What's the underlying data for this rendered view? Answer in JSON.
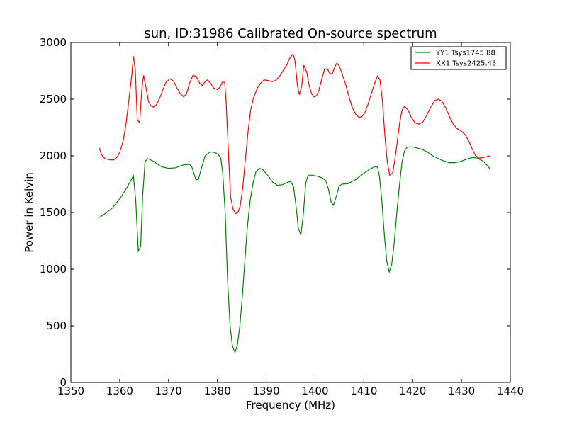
{
  "chart_data": {
    "type": "line",
    "title": "sun, ID:31986 Calibrated On-source spectrum",
    "xlabel": "Frequency (MHz)",
    "ylabel": "Power in Kelvin",
    "xlim": [
      1350,
      1440
    ],
    "ylim": [
      0,
      3000
    ],
    "xticks": [
      "1350",
      "1360",
      "1370",
      "1380",
      "1390",
      "1400",
      "1410",
      "1420",
      "1430",
      "1440"
    ],
    "yticks": [
      "0",
      "500",
      "1000",
      "1500",
      "2000",
      "2500",
      "3000"
    ],
    "grid": false,
    "legend_position": "top-right",
    "series": [
      {
        "name": "YY1 Tsys1745.88",
        "color": "#008000",
        "points": [
          [
            1355.8,
            1455
          ],
          [
            1357,
            1490
          ],
          [
            1358.5,
            1540
          ],
          [
            1360,
            1620
          ],
          [
            1361.5,
            1720
          ],
          [
            1362.8,
            1825
          ],
          [
            1363.3,
            1600
          ],
          [
            1363.8,
            1160
          ],
          [
            1364.3,
            1200
          ],
          [
            1364.7,
            1650
          ],
          [
            1365.2,
            1950
          ],
          [
            1365.8,
            1975
          ],
          [
            1367,
            1950
          ],
          [
            1368.5,
            1905
          ],
          [
            1370,
            1890
          ],
          [
            1371.5,
            1895
          ],
          [
            1373,
            1920
          ],
          [
            1374.3,
            1925
          ],
          [
            1374.8,
            1900
          ],
          [
            1375.6,
            1790
          ],
          [
            1376.1,
            1790
          ],
          [
            1376.8,
            1900
          ],
          [
            1377.5,
            2000
          ],
          [
            1378.5,
            2035
          ],
          [
            1379.5,
            2030
          ],
          [
            1380.2,
            2010
          ],
          [
            1380.7,
            1980
          ],
          [
            1381.1,
            1850
          ],
          [
            1381.6,
            1500
          ],
          [
            1382.1,
            900
          ],
          [
            1382.6,
            500
          ],
          [
            1383.1,
            320
          ],
          [
            1383.6,
            265
          ],
          [
            1384.1,
            330
          ],
          [
            1384.6,
            500
          ],
          [
            1385.1,
            750
          ],
          [
            1385.6,
            1050
          ],
          [
            1386.1,
            1350
          ],
          [
            1386.7,
            1600
          ],
          [
            1387.3,
            1760
          ],
          [
            1387.9,
            1860
          ],
          [
            1388.6,
            1890
          ],
          [
            1389.3,
            1880
          ],
          [
            1390.3,
            1830
          ],
          [
            1391.3,
            1770
          ],
          [
            1392.3,
            1740
          ],
          [
            1393.3,
            1745
          ],
          [
            1394.3,
            1765
          ],
          [
            1395,
            1775
          ],
          [
            1395.6,
            1730
          ],
          [
            1396.1,
            1560
          ],
          [
            1396.6,
            1360
          ],
          [
            1397.1,
            1300
          ],
          [
            1397.6,
            1480
          ],
          [
            1398.1,
            1760
          ],
          [
            1398.6,
            1830
          ],
          [
            1399.3,
            1830
          ],
          [
            1400.5,
            1820
          ],
          [
            1401.5,
            1805
          ],
          [
            1402.2,
            1780
          ],
          [
            1402.8,
            1700
          ],
          [
            1403.3,
            1590
          ],
          [
            1403.8,
            1565
          ],
          [
            1404.4,
            1650
          ],
          [
            1404.9,
            1730
          ],
          [
            1405.5,
            1750
          ],
          [
            1406.8,
            1755
          ],
          [
            1408.3,
            1790
          ],
          [
            1409.8,
            1840
          ],
          [
            1411.3,
            1885
          ],
          [
            1412.3,
            1905
          ],
          [
            1412.8,
            1900
          ],
          [
            1413.2,
            1820
          ],
          [
            1413.7,
            1600
          ],
          [
            1414.2,
            1300
          ],
          [
            1414.7,
            1070
          ],
          [
            1415.2,
            975
          ],
          [
            1415.7,
            1040
          ],
          [
            1416.2,
            1220
          ],
          [
            1416.8,
            1520
          ],
          [
            1417.3,
            1740
          ],
          [
            1417.8,
            1940
          ],
          [
            1418.3,
            2040
          ],
          [
            1418.8,
            2075
          ],
          [
            1419.5,
            2080
          ],
          [
            1420.5,
            2075
          ],
          [
            1421.7,
            2060
          ],
          [
            1422.8,
            2040
          ],
          [
            1424.1,
            2000
          ],
          [
            1425.3,
            1975
          ],
          [
            1426.4,
            1955
          ],
          [
            1427.5,
            1940
          ],
          [
            1428.6,
            1940
          ],
          [
            1429.8,
            1950
          ],
          [
            1431,
            1970
          ],
          [
            1432.2,
            1985
          ],
          [
            1433.3,
            1980
          ],
          [
            1434.5,
            1950
          ],
          [
            1435.4,
            1910
          ],
          [
            1435.8,
            1885
          ]
        ]
      },
      {
        "name": "XX1 Tsys2425.45",
        "color": "#ff0000",
        "points": [
          [
            1355.8,
            2070
          ],
          [
            1356.3,
            2010
          ],
          [
            1357,
            1975
          ],
          [
            1358,
            1965
          ],
          [
            1358.8,
            1965
          ],
          [
            1359.5,
            1990
          ],
          [
            1360,
            2030
          ],
          [
            1360.7,
            2130
          ],
          [
            1361.3,
            2280
          ],
          [
            1361.9,
            2500
          ],
          [
            1362.5,
            2720
          ],
          [
            1362.8,
            2880
          ],
          [
            1363.2,
            2760
          ],
          [
            1363.6,
            2320
          ],
          [
            1364.1,
            2290
          ],
          [
            1364.5,
            2570
          ],
          [
            1364.9,
            2710
          ],
          [
            1365.4,
            2600
          ],
          [
            1365.9,
            2480
          ],
          [
            1366.4,
            2440
          ],
          [
            1366.9,
            2430
          ],
          [
            1367.5,
            2450
          ],
          [
            1368.2,
            2510
          ],
          [
            1368.9,
            2590
          ],
          [
            1369.5,
            2650
          ],
          [
            1370.3,
            2680
          ],
          [
            1371,
            2660
          ],
          [
            1371.7,
            2600
          ],
          [
            1372.4,
            2550
          ],
          [
            1373.1,
            2520
          ],
          [
            1373.7,
            2550
          ],
          [
            1374.3,
            2640
          ],
          [
            1375,
            2710
          ],
          [
            1375.7,
            2700
          ],
          [
            1376.4,
            2640
          ],
          [
            1376.9,
            2620
          ],
          [
            1377.6,
            2660
          ],
          [
            1378,
            2670
          ],
          [
            1378.6,
            2640
          ],
          [
            1379.2,
            2600
          ],
          [
            1380,
            2585
          ],
          [
            1380.6,
            2610
          ],
          [
            1381,
            2650
          ],
          [
            1381.5,
            2650
          ],
          [
            1381.8,
            2470
          ],
          [
            1382.3,
            2000
          ],
          [
            1382.7,
            1640
          ],
          [
            1383.2,
            1530
          ],
          [
            1383.7,
            1490
          ],
          [
            1384.2,
            1500
          ],
          [
            1384.7,
            1560
          ],
          [
            1385.2,
            1720
          ],
          [
            1385.7,
            1950
          ],
          [
            1386.3,
            2220
          ],
          [
            1386.8,
            2400
          ],
          [
            1387.4,
            2510
          ],
          [
            1388.2,
            2600
          ],
          [
            1389,
            2650
          ],
          [
            1389.6,
            2670
          ],
          [
            1390.4,
            2665
          ],
          [
            1391.2,
            2655
          ],
          [
            1391.9,
            2665
          ],
          [
            1392.7,
            2700
          ],
          [
            1393.3,
            2740
          ],
          [
            1394.2,
            2800
          ],
          [
            1394.8,
            2860
          ],
          [
            1395.5,
            2900
          ],
          [
            1395.9,
            2840
          ],
          [
            1396.4,
            2620
          ],
          [
            1396.8,
            2540
          ],
          [
            1397.3,
            2620
          ],
          [
            1397.7,
            2800
          ],
          [
            1398.3,
            2740
          ],
          [
            1398.8,
            2620
          ],
          [
            1399.3,
            2550
          ],
          [
            1399.8,
            2520
          ],
          [
            1400.3,
            2530
          ],
          [
            1400.8,
            2580
          ],
          [
            1401.4,
            2680
          ],
          [
            1402,
            2770
          ],
          [
            1402.6,
            2760
          ],
          [
            1403,
            2730
          ],
          [
            1403.5,
            2720
          ],
          [
            1404,
            2780
          ],
          [
            1404.5,
            2820
          ],
          [
            1405,
            2790
          ],
          [
            1405.5,
            2730
          ],
          [
            1406.2,
            2640
          ],
          [
            1406.9,
            2530
          ],
          [
            1407.6,
            2430
          ],
          [
            1408.3,
            2370
          ],
          [
            1409,
            2340
          ],
          [
            1409.6,
            2345
          ],
          [
            1410.2,
            2380
          ],
          [
            1410.9,
            2460
          ],
          [
            1411.6,
            2560
          ],
          [
            1412.3,
            2650
          ],
          [
            1412.8,
            2705
          ],
          [
            1413.3,
            2670
          ],
          [
            1413.8,
            2490
          ],
          [
            1414.3,
            2180
          ],
          [
            1414.8,
            1950
          ],
          [
            1415.3,
            1830
          ],
          [
            1415.9,
            1850
          ],
          [
            1416.3,
            1950
          ],
          [
            1416.8,
            2110
          ],
          [
            1417.3,
            2280
          ],
          [
            1417.8,
            2400
          ],
          [
            1418.3,
            2435
          ],
          [
            1419,
            2410
          ],
          [
            1419.7,
            2340
          ],
          [
            1420.5,
            2290
          ],
          [
            1421.3,
            2280
          ],
          [
            1422.1,
            2300
          ],
          [
            1422.9,
            2360
          ],
          [
            1423.7,
            2430
          ],
          [
            1424.6,
            2490
          ],
          [
            1425.3,
            2500
          ],
          [
            1426,
            2480
          ],
          [
            1426.8,
            2420
          ],
          [
            1427.5,
            2350
          ],
          [
            1428.3,
            2280
          ],
          [
            1429.1,
            2240
          ],
          [
            1429.9,
            2220
          ],
          [
            1430.7,
            2190
          ],
          [
            1431.5,
            2130
          ],
          [
            1432.2,
            2060
          ],
          [
            1432.9,
            2000
          ],
          [
            1433.6,
            1980
          ],
          [
            1434.4,
            1985
          ],
          [
            1435.8,
            2000
          ]
        ]
      }
    ]
  }
}
